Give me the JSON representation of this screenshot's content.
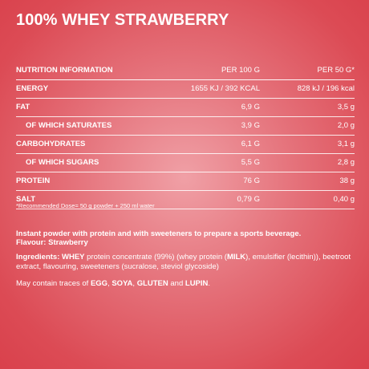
{
  "title": "100% WHEY STRAWBERRY",
  "table": {
    "header": {
      "label": "NUTRITION INFORMATION",
      "per100": "PER 100 G",
      "per50": "PER 50 G*"
    },
    "rows": [
      {
        "label": "ENERGY",
        "per100": "1655 KJ / 392 KCAL",
        "per50": "828 kJ / 196 kcal",
        "sub": false
      },
      {
        "label": "FAT",
        "per100": "6,9 G",
        "per50": "3,5 g",
        "sub": false
      },
      {
        "label": "OF WHICH SATURATES",
        "per100": "3,9 G",
        "per50": "2,0 g",
        "sub": true
      },
      {
        "label": "CARBOHYDRATES",
        "per100": "6,1 G",
        "per50": "3,1 g",
        "sub": false
      },
      {
        "label": "OF WHICH SUGARS",
        "per100": "5,5 G",
        "per50": "2,8 g",
        "sub": true
      },
      {
        "label": "PROTEIN",
        "per100": "76 G",
        "per50": "38 g",
        "sub": false
      },
      {
        "label": "SALT",
        "per100": "0,79 G",
        "per50": "0,40 g",
        "sub": false
      }
    ]
  },
  "note": "*Recommended Dose= 50 g powder + 250 ml water",
  "description": {
    "line1": "Instant powder with protein and with sweeteners to prepare a sports beverage.",
    "line2": "Flavour: Strawberry"
  },
  "ingredients": {
    "label": "Ingredients:",
    "whey": "WHEY",
    "part1": " protein concentrate (99%) (whey protein (",
    "milk": "MILK",
    "part2": "), emulsifier (lecithin)), beetroot extract, flavouring, sweeteners (sucralose, steviol glycoside)"
  },
  "traces": {
    "prefix": "May contain traces of ",
    "egg": "EGG",
    "sep1": ", ",
    "soya": "SOYA",
    "sep2": ", ",
    "gluten": "GLUTEN",
    "and": " and ",
    "lupin": "LUPIN",
    "end": "."
  }
}
